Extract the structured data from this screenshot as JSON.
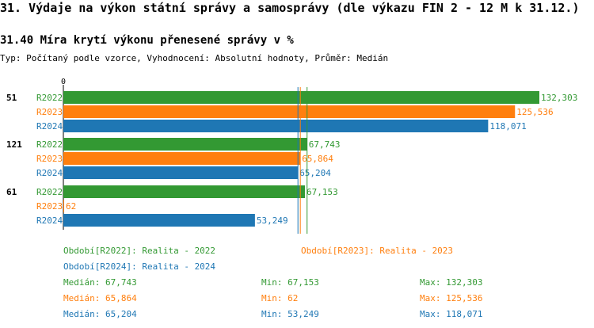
{
  "header": {
    "title": "31. Výdaje na výkon státní správy a samosprávy (dle výkazu FIN 2 - 12 M k 31.12.)",
    "subtitle": "31.40 Míra krytí výkonu přenesené správy v %",
    "type_line": "Typ: Počítaný podle vzorce, Vyhodnocení: Absolutní hodnoty, Průměr: Medián"
  },
  "colors": {
    "R2022": "#339933",
    "R2023": "#ff7f0e",
    "R2024": "#1f77b4"
  },
  "chart_data": {
    "type": "bar",
    "orientation": "horizontal",
    "axis_zero_label": "0",
    "xlim": [
      0,
      132303
    ],
    "groups": [
      {
        "label": "51",
        "bars": [
          {
            "series": "R2022",
            "value": 132303,
            "value_label": "132,303"
          },
          {
            "series": "R2023",
            "value": 125536,
            "value_label": "125,536"
          },
          {
            "series": "R2024",
            "value": 118071,
            "value_label": "118,071"
          }
        ]
      },
      {
        "label": "121",
        "bars": [
          {
            "series": "R2022",
            "value": 67743,
            "value_label": "67,743"
          },
          {
            "series": "R2023",
            "value": 65864,
            "value_label": "65,864"
          },
          {
            "series": "R2024",
            "value": 65204,
            "value_label": "65,204"
          }
        ]
      },
      {
        "label": "61",
        "bars": [
          {
            "series": "R2022",
            "value": 67153,
            "value_label": "67,153"
          },
          {
            "series": "R2023",
            "value": 62,
            "value_label": "62"
          },
          {
            "series": "R2024",
            "value": 53249,
            "value_label": "53,249"
          }
        ]
      }
    ],
    "median_lines": [
      {
        "series": "R2022",
        "value": 67743
      },
      {
        "series": "R2023",
        "value": 65864
      },
      {
        "series": "R2024",
        "value": 65204
      }
    ]
  },
  "legend": {
    "r2022": "Období[R2022]: Realita - 2022",
    "r2023": "Období[R2023]: Realita - 2023",
    "r2024": "Období[R2024]: Realita - 2024"
  },
  "stats": {
    "r2022": {
      "median": "Medián: 67,743",
      "min": "Min: 67,153",
      "max": "Max: 132,303"
    },
    "r2023": {
      "median": "Medián: 65,864",
      "min": "Min: 62",
      "max": "Max: 125,536"
    },
    "r2024": {
      "median": "Medián: 65,204",
      "min": "Min: 53,249",
      "max": "Max: 118,071"
    }
  }
}
